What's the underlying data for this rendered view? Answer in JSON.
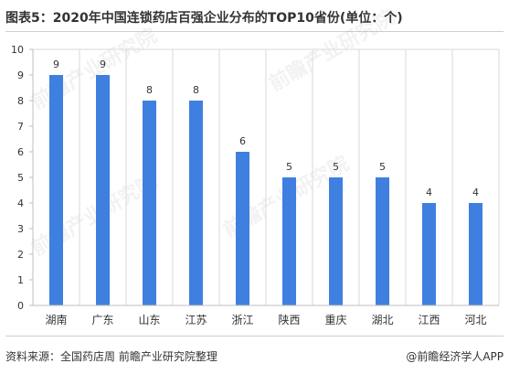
{
  "title": "图表5：2020年中国连锁药店百强企业分布的TOP10省份(单位：个)",
  "source": "资料来源：全国药店周 前瞻产业研究院整理",
  "credit": "@前瞻经济学人APP",
  "watermark": "前瞻产业研究院",
  "colors": {
    "bar": "#3f7fe0",
    "grid": "#d9d9d9",
    "axis": "#bfbfbf",
    "text": "#333333"
  },
  "chart_data": {
    "type": "bar",
    "categories": [
      "湖南",
      "广东",
      "山东",
      "江苏",
      "浙江",
      "陕西",
      "重庆",
      "湖北",
      "江西",
      "河北"
    ],
    "values": [
      9,
      9,
      8,
      8,
      6,
      5,
      5,
      5,
      4,
      4
    ],
    "yticks": [
      "0",
      "1",
      "2",
      "3",
      "4",
      "5",
      "6",
      "7",
      "8",
      "9",
      "10"
    ],
    "ylim": [
      0,
      10
    ],
    "grid": "vertical category separators",
    "legend": "none",
    "data_labels": true
  }
}
